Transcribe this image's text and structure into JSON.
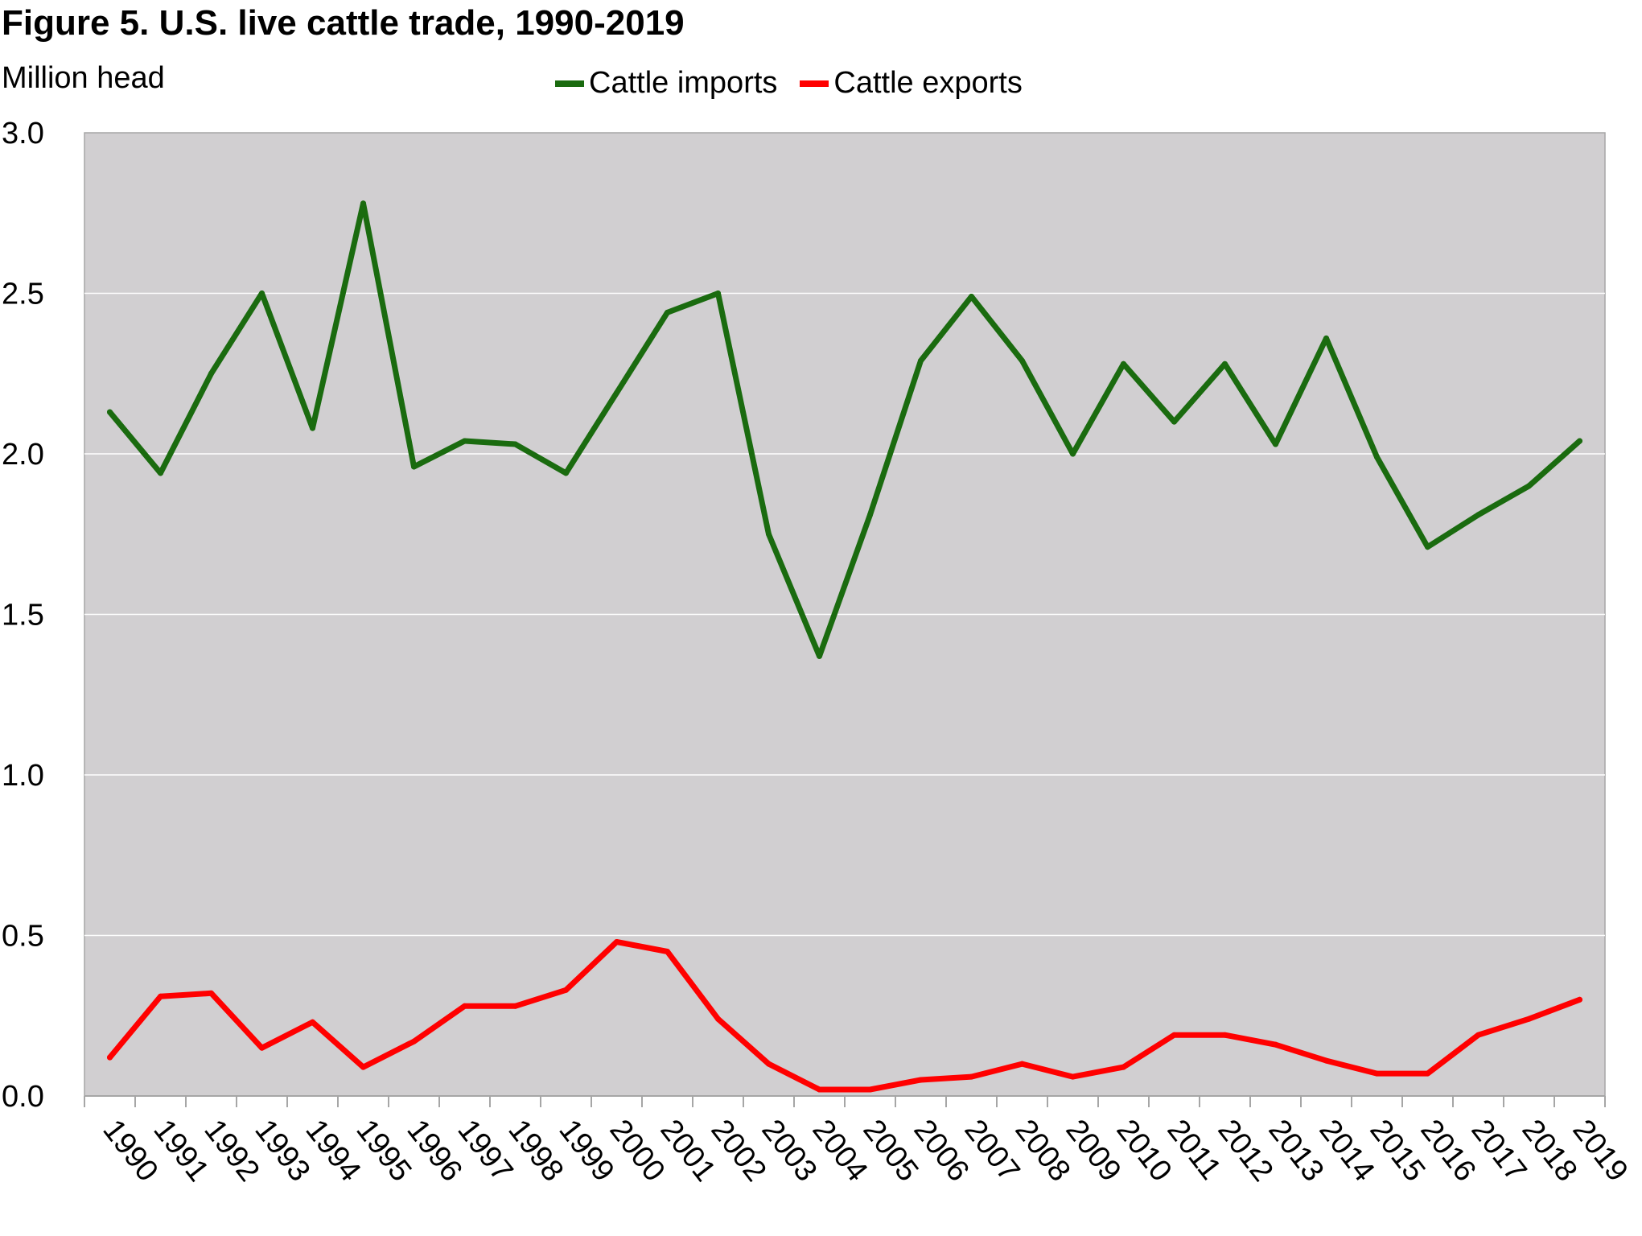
{
  "title": "Figure 5. U.S. live cattle trade, 1990-2019",
  "legend": {
    "imports_label": "Cattle imports",
    "exports_label": "Cattle exports"
  },
  "chart_data": {
    "type": "line",
    "title": "Figure 5. U.S. live cattle trade, 1990-2019",
    "ylabel": "Million head",
    "xlabel": "",
    "ylim": [
      0,
      3
    ],
    "yticks": [
      "0.0",
      "0.5",
      "1.0",
      "1.5",
      "2.0",
      "2.5",
      "3.0"
    ],
    "categories": [
      "1990",
      "1991",
      "1992",
      "1993",
      "1994",
      "1995",
      "1996",
      "1997",
      "1998",
      "1999",
      "2000",
      "2001",
      "2002",
      "2003",
      "2004",
      "2005",
      "2006",
      "2007",
      "2008",
      "2009",
      "2010",
      "2011",
      "2012",
      "2013",
      "2014",
      "2015",
      "2016",
      "2017",
      "2018",
      "2019"
    ],
    "grid": true,
    "legend_position": "top",
    "series": [
      {
        "name": "Cattle imports",
        "color": "#1a6b0f",
        "values": [
          2.13,
          1.94,
          2.25,
          2.5,
          2.08,
          2.78,
          1.96,
          2.04,
          2.03,
          1.94,
          2.19,
          2.44,
          2.5,
          1.75,
          1.37,
          1.81,
          2.29,
          2.49,
          2.29,
          2.0,
          2.28,
          2.1,
          2.28,
          2.03,
          2.36,
          1.99,
          1.71,
          1.81,
          1.9,
          2.04
        ]
      },
      {
        "name": "Cattle exports",
        "color": "#ff0000",
        "values": [
          0.12,
          0.31,
          0.32,
          0.15,
          0.23,
          0.09,
          0.17,
          0.28,
          0.28,
          0.33,
          0.48,
          0.45,
          0.24,
          0.1,
          0.02,
          0.02,
          0.05,
          0.06,
          0.1,
          0.06,
          0.09,
          0.19,
          0.19,
          0.16,
          0.11,
          0.07,
          0.07,
          0.19,
          0.24,
          0.3
        ]
      }
    ]
  }
}
